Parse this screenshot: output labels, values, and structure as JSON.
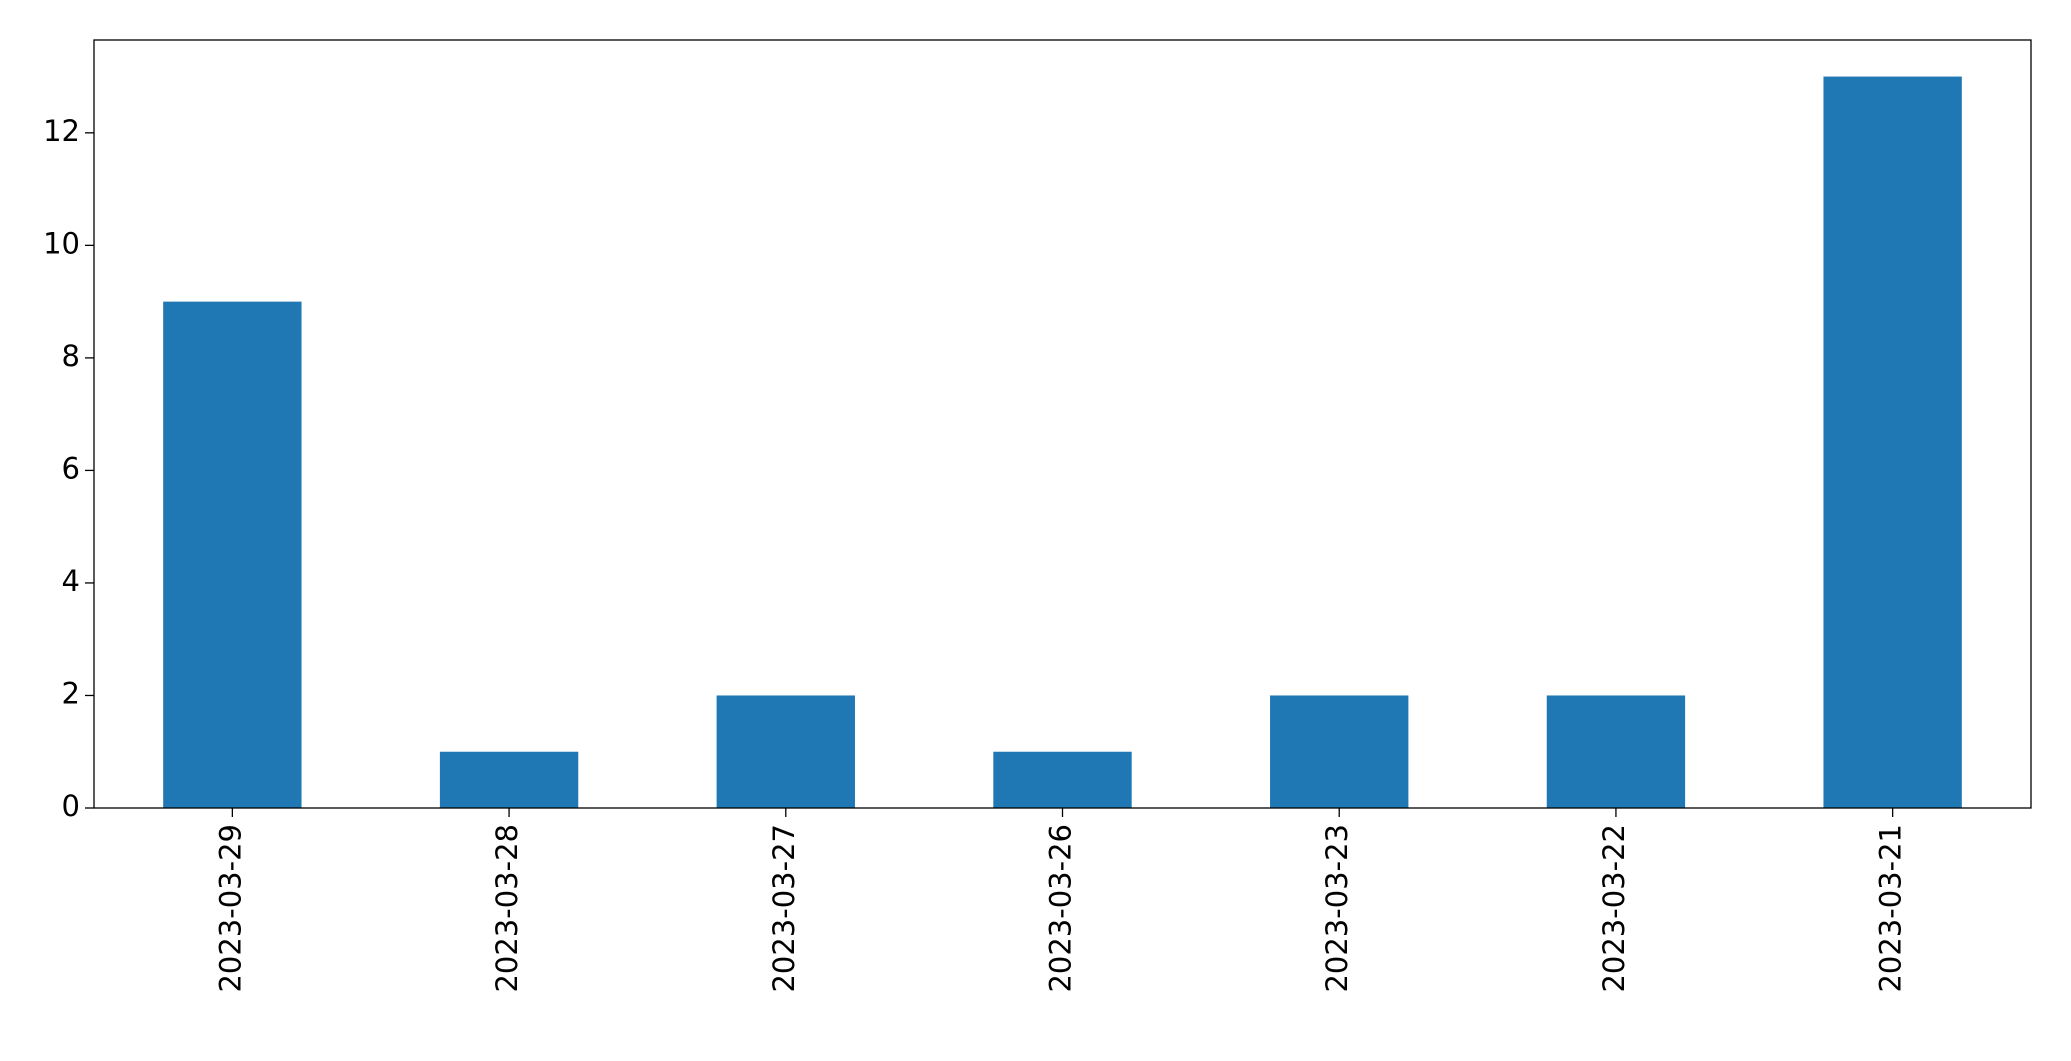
{
  "chart_data": {
    "type": "bar",
    "categories": [
      "2023-03-29",
      "2023-03-28",
      "2023-03-27",
      "2023-03-26",
      "2023-03-23",
      "2023-03-22",
      "2023-03-21"
    ],
    "values": [
      9,
      1,
      2,
      1,
      2,
      2,
      13
    ],
    "color": "#1f77b4",
    "ylim": [
      0,
      13.65
    ],
    "yticks": [
      0,
      2,
      4,
      6,
      8,
      10,
      12
    ],
    "grid": false
  }
}
